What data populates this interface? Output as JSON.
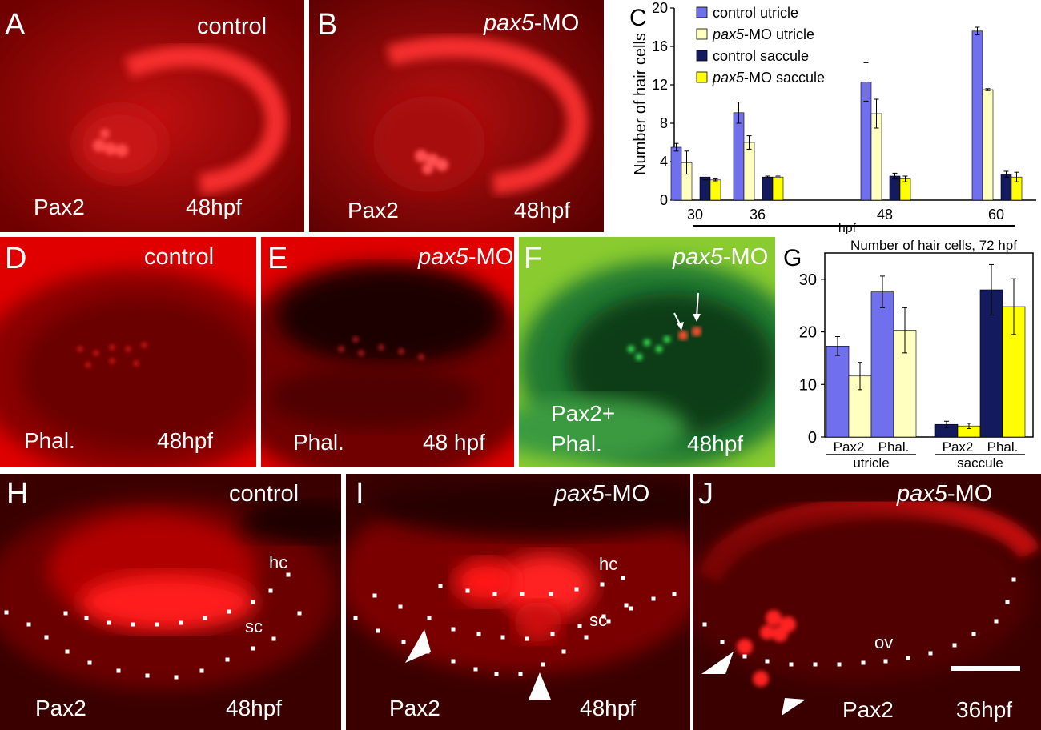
{
  "panels": {
    "A": {
      "letter": "A",
      "condition": "control",
      "stain": "Pax2",
      "time": "48hpf"
    },
    "B": {
      "letter": "B",
      "condition_italic": "pax5",
      "condition_rest": "-MO",
      "stain": "Pax2",
      "time": "48hpf"
    },
    "D": {
      "letter": "D",
      "condition": "control",
      "stain": "Phal.",
      "time": "48hpf"
    },
    "E": {
      "letter": "E",
      "condition_italic": "pax5",
      "condition_rest": "-MO",
      "stain": "Phal.",
      "time": "48 hpf"
    },
    "F": {
      "letter": "F",
      "condition_italic": "pax5",
      "condition_rest": "-MO",
      "stain_line1": "Pax2+",
      "stain_line2": "Phal.",
      "time": "48hpf"
    },
    "H": {
      "letter": "H",
      "condition": "control",
      "stain": "Pax2",
      "time": "48hpf",
      "hc": "hc",
      "sc": "sc"
    },
    "I": {
      "letter": "I",
      "condition_italic": "pax5",
      "condition_rest": "-MO",
      "stain": "Pax2",
      "time": "48hpf",
      "hc": "hc",
      "sc": "sc"
    },
    "J": {
      "letter": "J",
      "condition_italic": "pax5",
      "condition_rest": "-MO",
      "stain": "Pax2",
      "time": "36hpf",
      "ov": "ov"
    }
  },
  "chart_data": [
    {
      "panel": "C",
      "type": "bar",
      "title": "",
      "xlabel": "hpf",
      "ylabel": "Number of hair cells",
      "ylim": [
        0,
        20
      ],
      "yticks": [
        "0",
        "4",
        "8",
        "12",
        "16",
        "20"
      ],
      "categories": [
        "30",
        "36",
        "48",
        "60"
      ],
      "legend_position": "top-left",
      "series": [
        {
          "name_italic": "",
          "name": "control utricle",
          "color": "#7070ee",
          "values": [
            5.5,
            9.1,
            12.3,
            17.6
          ],
          "errors": [
            0.4,
            1.1,
            2.0,
            0.4
          ]
        },
        {
          "name_italic": "pax5",
          "name": "-MO utricle",
          "color": "#ffffc0",
          "values": [
            3.9,
            6.0,
            9.0,
            11.5
          ],
          "errors": [
            1.2,
            0.7,
            1.5,
            0.1
          ]
        },
        {
          "name_italic": "",
          "name": "control saccule",
          "color": "#141a5e",
          "values": [
            2.4,
            2.4,
            2.5,
            2.7
          ],
          "errors": [
            0.3,
            0.1,
            0.3,
            0.3
          ]
        },
        {
          "name_italic": "pax5",
          "name": "-MO saccule",
          "color": "#ffff00",
          "values": [
            2.1,
            2.4,
            2.2,
            2.4
          ],
          "errors": [
            0.1,
            0.1,
            0.3,
            0.5
          ]
        }
      ]
    },
    {
      "panel": "G",
      "type": "bar",
      "title": "Number of hair cells, 72 hpf",
      "ylim": [
        0,
        35
      ],
      "yticks": [
        "0",
        "10",
        "20",
        "30"
      ],
      "groups": [
        "utricle",
        "saccule"
      ],
      "subcategories": [
        "Pax2",
        "Phal."
      ],
      "bars": [
        {
          "group": "utricle",
          "sub": "Pax2",
          "condition": "control",
          "color": "#7070ee",
          "value": 17.3,
          "error": 1.8
        },
        {
          "group": "utricle",
          "sub": "Pax2",
          "condition": "pax5-MO",
          "color": "#ffffc0",
          "value": 11.6,
          "error": 2.6
        },
        {
          "group": "utricle",
          "sub": "Phal.",
          "condition": "control",
          "color": "#7070ee",
          "value": 27.6,
          "error": 3.0
        },
        {
          "group": "utricle",
          "sub": "Phal.",
          "condition": "pax5-MO",
          "color": "#ffffc0",
          "value": 20.3,
          "error": 4.3
        },
        {
          "group": "saccule",
          "sub": "Pax2",
          "condition": "control",
          "color": "#141a5e",
          "value": 2.4,
          "error": 0.6
        },
        {
          "group": "saccule",
          "sub": "Pax2",
          "condition": "pax5-MO",
          "color": "#ffff00",
          "value": 2.1,
          "error": 0.5
        },
        {
          "group": "saccule",
          "sub": "Phal.",
          "condition": "control",
          "color": "#141a5e",
          "value": 28.0,
          "error": 4.8
        },
        {
          "group": "saccule",
          "sub": "Phal.",
          "condition": "pax5-MO",
          "color": "#ffff00",
          "value": 24.8,
          "error": 5.3
        }
      ]
    }
  ]
}
